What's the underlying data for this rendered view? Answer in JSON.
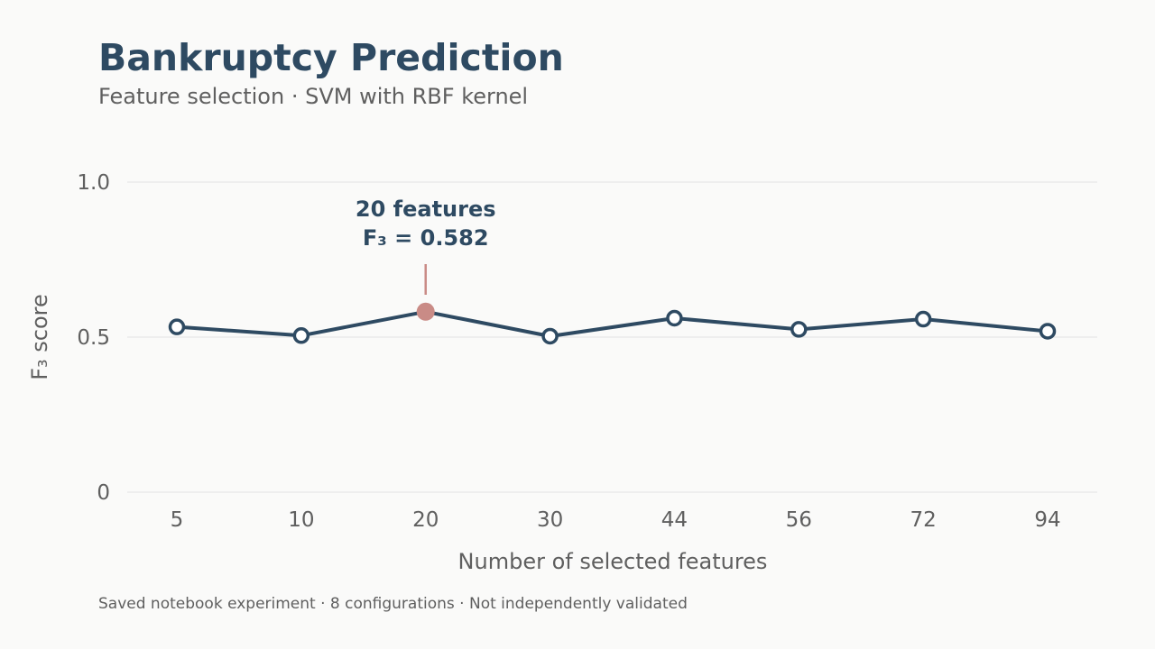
{
  "header": {
    "title": "Bankruptcy Prediction",
    "subtitle": "Feature selection · SVM with RBF kernel"
  },
  "footnote": "Saved notebook experiment · 8 configurations · Not independently validated",
  "colors": {
    "line": "#2e4a62",
    "highlight": "#c98b86",
    "grid": "#e3e3e3",
    "text": "#5f5f5f"
  },
  "chart_data": {
    "type": "line",
    "categories": [
      "5",
      "10",
      "20",
      "30",
      "44",
      "56",
      "72",
      "94"
    ],
    "values": [
      0.533,
      0.505,
      0.582,
      0.503,
      0.561,
      0.525,
      0.558,
      0.519
    ],
    "xlabel": "Number of selected features",
    "ylabel": "F₃ score",
    "ylim": [
      0,
      1.0
    ],
    "yticks": [
      {
        "value": 0,
        "label": "0"
      },
      {
        "value": 0.5,
        "label": "0.5"
      },
      {
        "value": 1.0,
        "label": "1.0"
      }
    ],
    "grid": true,
    "highlight_index": 2,
    "annotation": {
      "line1": "20 features",
      "line2": "F₃ = 0.582"
    }
  }
}
